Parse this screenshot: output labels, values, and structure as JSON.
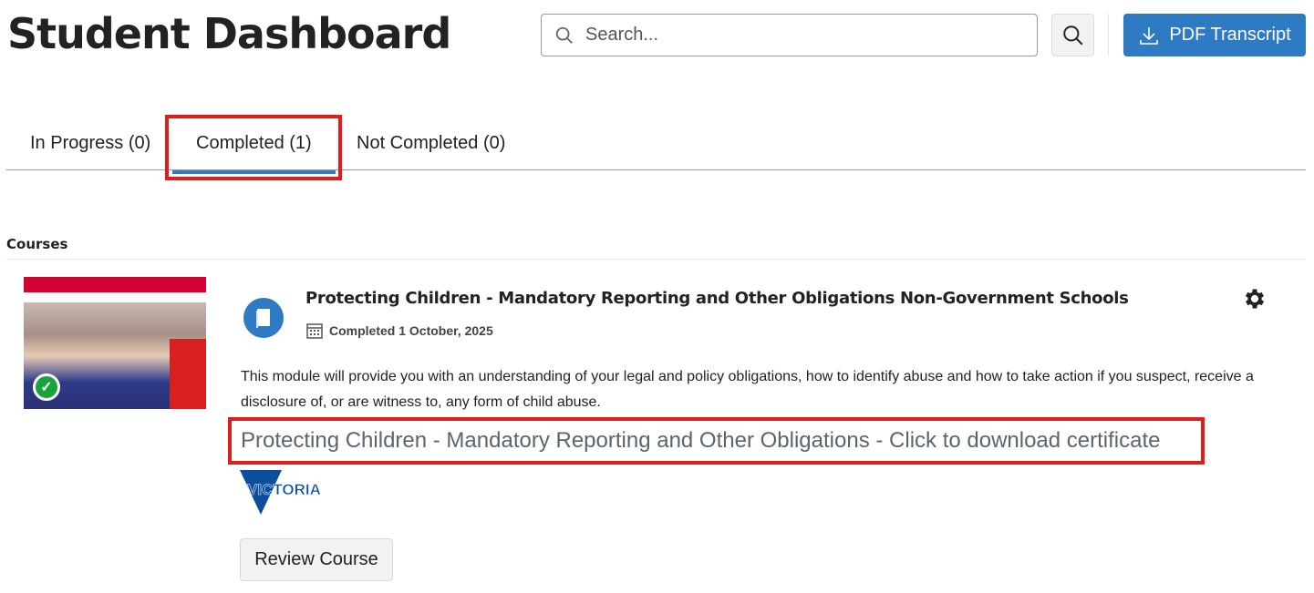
{
  "header": {
    "title": "Student Dashboard",
    "search_placeholder": "Search...",
    "pdf_button": "PDF Transcript",
    "accent_color": "#2e7bc4"
  },
  "tabs": [
    {
      "label": "In Progress (0)",
      "active": false
    },
    {
      "label": "Completed (1)",
      "active": true
    },
    {
      "label": "Not Completed (0)",
      "active": false
    }
  ],
  "courses": {
    "heading": "Courses",
    "items": [
      {
        "title": "Protecting Children - Mandatory Reporting and Other Obligations Non-Government Schools",
        "status": "Completed 1 October, 2025",
        "description": "This module will provide you with an understanding of your legal and policy obligations, how to identify abuse and how to take action if you suspect, receive a disclosure of, or are witness to, any form of child abuse.",
        "certificate_link": "Protecting Children - Mandatory Reporting and Other Obligations - Click to download certificate",
        "logo_text": "VICTORIA",
        "review_button": "Review Course",
        "icons": [
          "book-icon",
          "calendar-icon",
          "gear-icon",
          "check-icon"
        ]
      }
    ]
  }
}
